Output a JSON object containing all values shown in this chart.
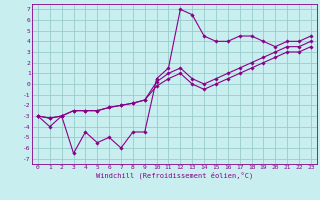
{
  "title": "",
  "xlabel": "Windchill (Refroidissement éolien,°C)",
  "bg_color": "#c8eef0",
  "line_color": "#880088",
  "grid_color": "#99cccc",
  "xlim": [
    -0.5,
    23.5
  ],
  "ylim": [
    -7.5,
    7.5
  ],
  "xticks": [
    0,
    1,
    2,
    3,
    4,
    5,
    6,
    7,
    8,
    9,
    10,
    11,
    12,
    13,
    14,
    15,
    16,
    17,
    18,
    19,
    20,
    21,
    22,
    23
  ],
  "yticks": [
    -7,
    -6,
    -5,
    -4,
    -3,
    -2,
    -1,
    0,
    1,
    2,
    3,
    4,
    5,
    6,
    7
  ],
  "series": [
    {
      "x": [
        0,
        1,
        2,
        3,
        4,
        5,
        6,
        7,
        8,
        9,
        10,
        11,
        12,
        13,
        14,
        15,
        16,
        17,
        18,
        19,
        20,
        21,
        22,
        23
      ],
      "y": [
        -3,
        -4,
        -3,
        -6.5,
        -4.5,
        -5.5,
        -5,
        -6,
        -4.5,
        -4.5,
        0.5,
        1.5,
        7,
        6.5,
        4.5,
        4,
        4,
        4.5,
        4.5,
        4,
        3.5,
        4,
        4,
        4.5
      ]
    },
    {
      "x": [
        0,
        1,
        2,
        3,
        4,
        5,
        6,
        7,
        8,
        9,
        10,
        11,
        12,
        13,
        14,
        15,
        16,
        17,
        18,
        19,
        20,
        21,
        22,
        23
      ],
      "y": [
        -3,
        -3.2,
        -3,
        -2.5,
        -2.5,
        -2.5,
        -2.2,
        -2.0,
        -1.8,
        -1.5,
        0.2,
        1.0,
        1.5,
        0.5,
        0.0,
        0.5,
        1.0,
        1.5,
        2.0,
        2.5,
        3.0,
        3.5,
        3.5,
        4.0
      ]
    },
    {
      "x": [
        0,
        1,
        2,
        3,
        4,
        5,
        6,
        7,
        8,
        9,
        10,
        11,
        12,
        13,
        14,
        15,
        16,
        17,
        18,
        19,
        20,
        21,
        22,
        23
      ],
      "y": [
        -3,
        -3.2,
        -3,
        -2.5,
        -2.5,
        -2.5,
        -2.2,
        -2.0,
        -1.8,
        -1.5,
        -0.2,
        0.5,
        1.0,
        0.0,
        -0.5,
        0.0,
        0.5,
        1.0,
        1.5,
        2.0,
        2.5,
        3.0,
        3.0,
        3.5
      ]
    }
  ]
}
